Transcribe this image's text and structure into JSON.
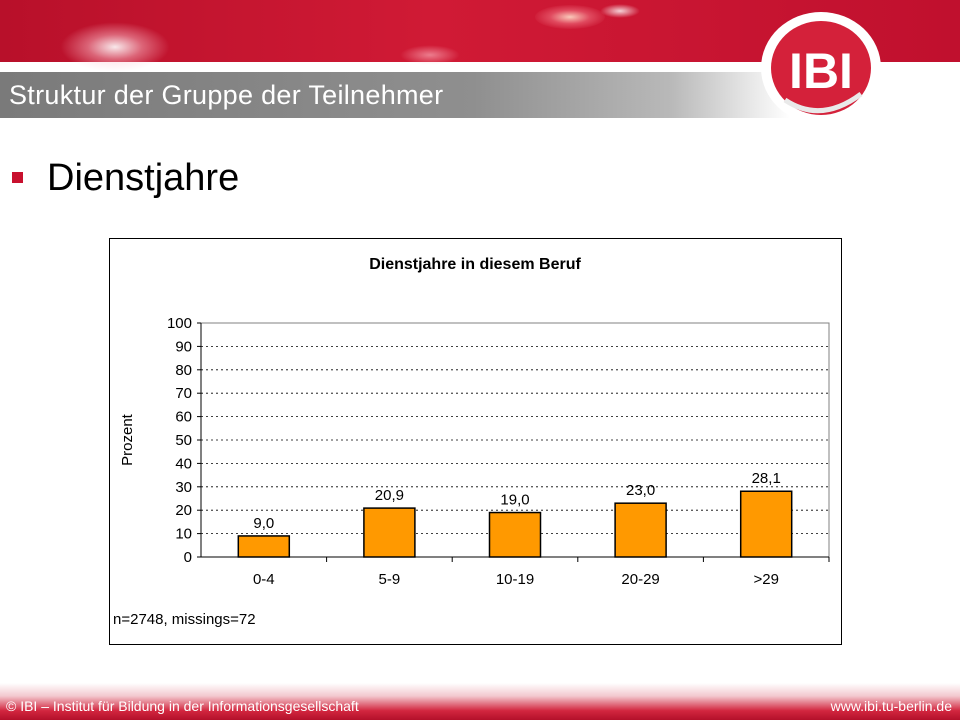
{
  "header": {
    "title": "Struktur der Gruppe der Teilnehmer",
    "logo_text": "IBI"
  },
  "bullet": {
    "text": "Dienstjahre"
  },
  "footer": {
    "left": "© IBI – Institut für Bildung in der Informationsgesellschaft",
    "right": "www.ibi.tu-berlin.de"
  },
  "colors": {
    "brand_red": "#c8102e",
    "bar_fill": "#ff9900",
    "plot_bg": "#ffffff"
  },
  "chart_data": {
    "type": "bar",
    "title": "Dienstjahre in diesem Beruf",
    "xlabel": "",
    "ylabel": "Prozent",
    "categories": [
      "0-4",
      "5-9",
      "10-19",
      "20-29",
      ">29"
    ],
    "values": [
      9.0,
      20.9,
      19.0,
      23.0,
      28.1
    ],
    "value_labels": [
      "9,0",
      "20,9",
      "19,0",
      "23,0",
      "28,1"
    ],
    "ylim": [
      0,
      100
    ],
    "yticks": [
      0,
      10,
      20,
      30,
      40,
      50,
      60,
      70,
      80,
      90,
      100
    ],
    "grid": "horizontal dashed",
    "legend": "none",
    "note": "n=2748, missings=72"
  }
}
